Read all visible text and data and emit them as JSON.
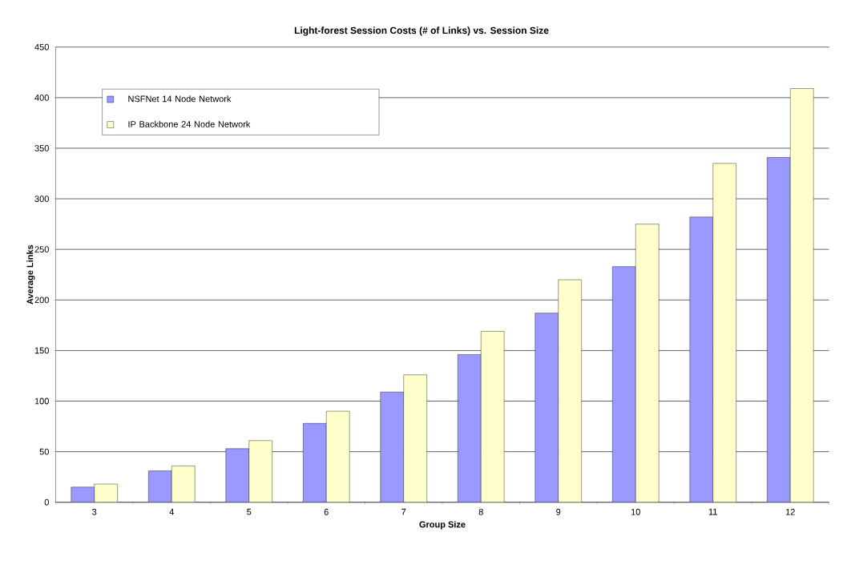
{
  "chart_data": {
    "type": "bar",
    "title": "Light-forest Session Costs (# of Links) vs. Session Size",
    "xlabel": "Group Size",
    "ylabel": "Average Links",
    "categories": [
      "3",
      "4",
      "5",
      "6",
      "7",
      "8",
      "9",
      "10",
      "11",
      "12"
    ],
    "series": [
      {
        "name": "NSFNet 14 Node Network",
        "color": "#9999ff",
        "values": [
          15,
          31,
          53,
          78,
          109,
          146,
          187,
          233,
          282,
          341
        ]
      },
      {
        "name": "IP Backbone 24 Node Network",
        "color": "#ffffcc",
        "values": [
          18,
          36,
          61,
          90,
          126,
          169,
          220,
          275,
          335,
          409
        ]
      }
    ],
    "ylim": [
      0,
      450
    ],
    "yticks": [
      0,
      50,
      100,
      150,
      200,
      250,
      300,
      350,
      400,
      450
    ],
    "grid": "y",
    "legend": "top left"
  }
}
